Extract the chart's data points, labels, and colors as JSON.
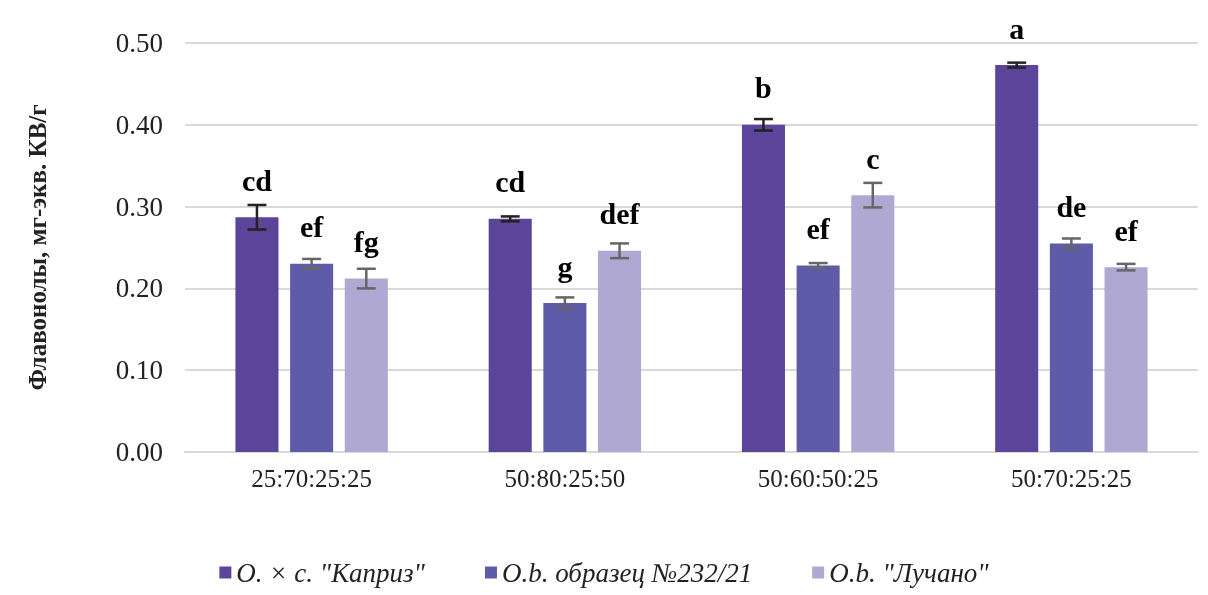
{
  "chart_data": {
    "type": "bar",
    "ylabel": "Флавонолы, мг-экв. КВ/г",
    "categories": [
      "25:70:25:25",
      "50:80:25:50",
      "50:60:50:25",
      "50:70:25:25"
    ],
    "series": [
      {
        "name": "O. × c. \"Каприз\"",
        "color": "#5b4499",
        "values": [
          0.287,
          0.285,
          0.4,
          0.473
        ],
        "errors": [
          0.015,
          0.003,
          0.007,
          0.003
        ],
        "value_labels": [
          "cd",
          "cd",
          "b",
          "a"
        ]
      },
      {
        "name": "O.b. образец №232/21",
        "color": "#5e5ca8",
        "values": [
          0.23,
          0.182,
          0.228,
          0.255
        ],
        "errors": [
          0.006,
          0.007,
          0.003,
          0.006
        ],
        "value_labels": [
          "ef",
          "g",
          "ef",
          "de"
        ]
      },
      {
        "name": "O.b. \"Лучано\"",
        "color": "#afa8d3",
        "values": [
          0.212,
          0.246,
          0.314,
          0.226
        ],
        "errors": [
          0.012,
          0.009,
          0.015,
          0.004
        ],
        "value_labels": [
          "fg",
          "def",
          "c",
          "ef"
        ]
      }
    ],
    "ylim": [
      0,
      0.5
    ],
    "yticks": [
      {
        "value": 0,
        "label": "0.00"
      },
      {
        "value": 0.1,
        "label": "0.10"
      },
      {
        "value": 0.2,
        "label": "0.20"
      },
      {
        "value": 0.3,
        "label": "0.30"
      },
      {
        "value": 0.4,
        "label": "0.40"
      },
      {
        "value": 0.5,
        "label": "0.50"
      }
    ],
    "grid": "y",
    "legend": "bottom"
  }
}
